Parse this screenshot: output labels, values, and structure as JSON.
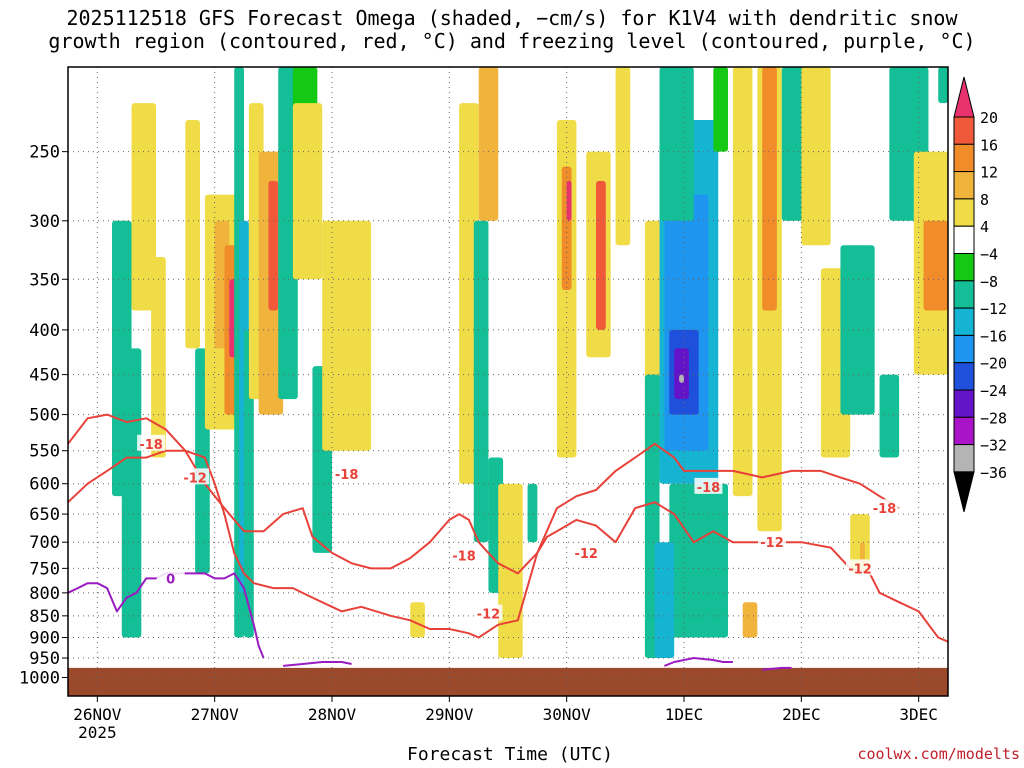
{
  "header": {
    "title_line1": "2025112518 GFS Forecast Omega (shaded, −cm/s) for K1V4 with dendritic snow",
    "title_line2": "growth region (contoured, red, °C) and freezing level (contoured, purple, °C)"
  },
  "footer": {
    "xlabel": "Forecast Time (UTC)",
    "credit": "coolwx.com/modelts"
  },
  "colors": {
    "temp_contour": "#e8413a",
    "freezing_contour": "#9a1bc0",
    "ground": "#9a4a2a",
    "credit": "#c0202b"
  },
  "chart_data": {
    "type": "heatmap",
    "title": "2025112518 GFS Forecast Omega (shaded, −cm/s) for K1V4 with dendritic snow growth region (contoured, red, °C) and freezing level (contoured, purple, °C)",
    "xlabel": "Forecast Time (UTC)",
    "ylabel": "",
    "x_ticks": [
      "26NOV",
      "27NOV",
      "28NOV",
      "29NOV",
      "30NOV",
      "1DEC",
      "2DEC",
      "3DEC"
    ],
    "x_tick_hours": [
      6,
      30,
      54,
      78,
      102,
      126,
      150,
      174
    ],
    "x_year_label": "2025",
    "x_range_hours": [
      0,
      180
    ],
    "y_ticks": [
      250,
      300,
      350,
      400,
      450,
      500,
      550,
      600,
      650,
      700,
      750,
      800,
      850,
      900,
      950,
      1000
    ],
    "y_range_hpa": [
      200,
      1050
    ],
    "y_scale": "log-pressure (inverted)",
    "grid": true,
    "legend_position": "right colorbar",
    "colorbar": {
      "labels": [
        "20",
        "16",
        "12",
        "8",
        "4",
        "−4",
        "−8",
        "−12",
        "−16",
        "−20",
        "−24",
        "−28",
        "−32",
        "−36"
      ],
      "colors": [
        "#e8326e",
        "#f05a3a",
        "#f08c2a",
        "#f0b43c",
        "#f0dc46",
        "#ffffff",
        "#14c814",
        "#14be96",
        "#14b4d2",
        "#1e96f0",
        "#1e50dc",
        "#6414c8",
        "#aa14c8",
        "#b4b4b4",
        "#000000"
      ]
    },
    "omega_features": [
      {
        "t0": 9,
        "t1": 13,
        "p0": 300,
        "p1": 620,
        "v": -8
      },
      {
        "t0": 11,
        "t1": 15,
        "p0": 420,
        "p1": 900,
        "v": -8
      },
      {
        "t0": 13,
        "t1": 18,
        "p0": 220,
        "p1": 380,
        "v": 5
      },
      {
        "t0": 17,
        "t1": 20,
        "p0": 330,
        "p1": 560,
        "v": 5
      },
      {
        "t0": 24,
        "t1": 27,
        "p0": 230,
        "p1": 420,
        "v": 5
      },
      {
        "t0": 26,
        "t1": 29,
        "p0": 420,
        "p1": 760,
        "v": -8
      },
      {
        "t0": 28,
        "t1": 35,
        "p0": 280,
        "p1": 520,
        "v": 5
      },
      {
        "t0": 30,
        "t1": 33,
        "p0": 300,
        "p1": 420,
        "v": 9
      },
      {
        "t0": 32,
        "t1": 35,
        "p0": 320,
        "p1": 500,
        "v": 14
      },
      {
        "t0": 33,
        "t1": 34.5,
        "p0": 350,
        "p1": 430,
        "v": 20
      },
      {
        "t0": 34,
        "t1": 36,
        "p0": 200,
        "p1": 900,
        "v": -9
      },
      {
        "t0": 35,
        "t1": 37,
        "p0": 300,
        "p1": 800,
        "v": -14
      },
      {
        "t0": 36,
        "t1": 38,
        "p0": 400,
        "p1": 900,
        "v": -9
      },
      {
        "t0": 37,
        "t1": 40,
        "p0": 220,
        "p1": 480,
        "v": 5
      },
      {
        "t0": 39,
        "t1": 44,
        "p0": 250,
        "p1": 500,
        "v": 9
      },
      {
        "t0": 41,
        "t1": 43,
        "p0": 270,
        "p1": 380,
        "v": 16
      },
      {
        "t0": 43,
        "t1": 47,
        "p0": 200,
        "p1": 480,
        "v": -8
      },
      {
        "t0": 46,
        "t1": 51,
        "p0": 200,
        "p1": 300,
        "v": -6
      },
      {
        "t0": 46,
        "t1": 52,
        "p0": 220,
        "p1": 350,
        "v": 5
      },
      {
        "t0": 50,
        "t1": 54,
        "p0": 440,
        "p1": 720,
        "v": -8
      },
      {
        "t0": 55,
        "t1": 60,
        "p0": 340,
        "p1": 500,
        "v": 9
      },
      {
        "t0": 57,
        "t1": 60,
        "p0": 370,
        "p1": 440,
        "v": 15
      },
      {
        "t0": 52,
        "t1": 62,
        "p0": 300,
        "p1": 550,
        "v": 5
      },
      {
        "t0": 50,
        "t1": 53,
        "p0": 600,
        "p1": 700,
        "v": -8
      },
      {
        "t0": 70,
        "t1": 73,
        "p0": 820,
        "p1": 900,
        "v": 5
      },
      {
        "t0": 80,
        "t1": 84,
        "p0": 220,
        "p1": 600,
        "v": 5
      },
      {
        "t0": 84,
        "t1": 88,
        "p0": 200,
        "p1": 300,
        "v": 9
      },
      {
        "t0": 83,
        "t1": 86,
        "p0": 300,
        "p1": 700,
        "v": -8
      },
      {
        "t0": 86,
        "t1": 89,
        "p0": 560,
        "p1": 800,
        "v": -8
      },
      {
        "t0": 88,
        "t1": 93,
        "p0": 600,
        "p1": 950,
        "v": 5
      },
      {
        "t0": 94,
        "t1": 96,
        "p0": 600,
        "p1": 700,
        "v": -8
      },
      {
        "t0": 100,
        "t1": 104,
        "p0": 230,
        "p1": 560,
        "v": 5
      },
      {
        "t0": 101,
        "t1": 103,
        "p0": 260,
        "p1": 360,
        "v": 12
      },
      {
        "t0": 102,
        "t1": 103,
        "p0": 270,
        "p1": 300,
        "v": 20
      },
      {
        "t0": 106,
        "t1": 111,
        "p0": 250,
        "p1": 430,
        "v": 5
      },
      {
        "t0": 108,
        "t1": 110,
        "p0": 270,
        "p1": 400,
        "v": 16
      },
      {
        "t0": 112,
        "t1": 115,
        "p0": 200,
        "p1": 320,
        "v": 5
      },
      {
        "t0": 118,
        "t1": 122,
        "p0": 300,
        "p1": 560,
        "v": 5
      },
      {
        "t0": 118,
        "t1": 121,
        "p0": 450,
        "p1": 950,
        "v": -8
      },
      {
        "t0": 121,
        "t1": 133,
        "p0": 230,
        "p1": 600,
        "v": -12
      },
      {
        "t0": 122,
        "t1": 131,
        "p0": 280,
        "p1": 550,
        "v": -17
      },
      {
        "t0": 123,
        "t1": 129,
        "p0": 400,
        "p1": 500,
        "v": -22
      },
      {
        "t0": 124,
        "t1": 127,
        "p0": 420,
        "p1": 480,
        "v": -27
      },
      {
        "t0": 125,
        "t1": 126,
        "p0": 450,
        "p1": 460,
        "v": -33
      },
      {
        "t0": 121,
        "t1": 128,
        "p0": 200,
        "p1": 300,
        "v": -8
      },
      {
        "t0": 123,
        "t1": 135,
        "p0": 600,
        "p1": 900,
        "v": -8
      },
      {
        "t0": 120,
        "t1": 124,
        "p0": 700,
        "p1": 950,
        "v": -12
      },
      {
        "t0": 132,
        "t1": 135,
        "p0": 200,
        "p1": 250,
        "v": -6
      },
      {
        "t0": 136,
        "t1": 140,
        "p0": 200,
        "p1": 620,
        "v": 5
      },
      {
        "t0": 138,
        "t1": 141,
        "p0": 820,
        "p1": 900,
        "v": 9
      },
      {
        "t0": 141,
        "t1": 146,
        "p0": 200,
        "p1": 680,
        "v": 5
      },
      {
        "t0": 142,
        "t1": 145,
        "p0": 200,
        "p1": 380,
        "v": 12
      },
      {
        "t0": 146,
        "t1": 155,
        "p0": 200,
        "p1": 300,
        "v": -8
      },
      {
        "t0": 150,
        "t1": 156,
        "p0": 200,
        "p1": 320,
        "v": 5
      },
      {
        "t0": 154,
        "t1": 160,
        "p0": 340,
        "p1": 560,
        "v": 5
      },
      {
        "t0": 158,
        "t1": 165,
        "p0": 320,
        "p1": 500,
        "v": -8
      },
      {
        "t0": 160,
        "t1": 164,
        "p0": 650,
        "p1": 760,
        "v": 5
      },
      {
        "t0": 162,
        "t1": 163,
        "p0": 700,
        "p1": 740,
        "v": 9
      },
      {
        "t0": 166,
        "t1": 170,
        "p0": 450,
        "p1": 560,
        "v": -8
      },
      {
        "t0": 168,
        "t1": 176,
        "p0": 200,
        "p1": 300,
        "v": -8
      },
      {
        "t0": 173,
        "t1": 180,
        "p0": 250,
        "p1": 450,
        "v": 5
      },
      {
        "t0": 175,
        "t1": 180,
        "p0": 300,
        "p1": 380,
        "v": 12
      },
      {
        "t0": 178,
        "t1": 180,
        "p0": 200,
        "p1": 220,
        "v": -8
      }
    ],
    "dgz_contours": {
      "level_minus12": {
        "t": [
          0,
          4,
          8,
          12,
          16,
          20,
          24,
          28,
          30,
          32,
          34,
          36,
          38,
          42,
          46,
          50,
          54,
          56,
          60,
          66,
          70,
          74,
          78,
          82,
          84,
          88,
          92,
          96,
          98,
          100,
          104,
          108,
          112,
          116,
          120,
          124,
          128,
          132,
          136,
          140,
          144,
          150,
          156,
          160,
          164,
          166,
          170,
          174,
          178,
          180
        ],
        "p": [
          630,
          600,
          580,
          560,
          560,
          550,
          550,
          560,
          600,
          650,
          720,
          760,
          780,
          790,
          790,
          810,
          830,
          840,
          830,
          850,
          860,
          880,
          880,
          890,
          900,
          870,
          860,
          720,
          690,
          680,
          660,
          670,
          700,
          640,
          630,
          650,
          700,
          680,
          700,
          700,
          700,
          700,
          710,
          750,
          760,
          800,
          820,
          840,
          900,
          910
        ]
      },
      "level_minus18": {
        "t": [
          0,
          4,
          8,
          12,
          16,
          20,
          24,
          28,
          32,
          36,
          40,
          44,
          48,
          50,
          54,
          58,
          62,
          66,
          70,
          74,
          78,
          80,
          82,
          84,
          86,
          88,
          92,
          96,
          100,
          104,
          108,
          112,
          116,
          120,
          124,
          126,
          130,
          136,
          142,
          148,
          154,
          158,
          162,
          166,
          170
        ],
        "p": [
          540,
          505,
          500,
          510,
          505,
          520,
          550,
          600,
          640,
          680,
          680,
          650,
          640,
          690,
          720,
          740,
          750,
          750,
          730,
          700,
          660,
          650,
          660,
          700,
          720,
          740,
          760,
          720,
          640,
          620,
          610,
          580,
          560,
          540,
          560,
          580,
          580,
          580,
          590,
          580,
          580,
          590,
          600,
          620,
          640
        ]
      },
      "labels": [
        {
          "text": "-18",
          "t": 17,
          "p": 540
        },
        {
          "text": "-12",
          "t": 26,
          "p": 590
        },
        {
          "text": "-18",
          "t": 57,
          "p": 585
        },
        {
          "text": "-18",
          "t": 81,
          "p": 725
        },
        {
          "text": "-12",
          "t": 86,
          "p": 845
        },
        {
          "text": "-12",
          "t": 106,
          "p": 720
        },
        {
          "text": "-18",
          "t": 131,
          "p": 605
        },
        {
          "text": "-12",
          "t": 144,
          "p": 700
        },
        {
          "text": "-12",
          "t": 162,
          "p": 750
        },
        {
          "text": "-18",
          "t": 167,
          "p": 640
        }
      ]
    },
    "freezing_contour": {
      "segments": [
        {
          "t": [
            0,
            2,
            4,
            6,
            8,
            10,
            12,
            14,
            16,
            18,
            20,
            22,
            24,
            26,
            28,
            30,
            32,
            34,
            36,
            37,
            38,
            39,
            40
          ],
          "p": [
            800,
            790,
            780,
            780,
            790,
            840,
            810,
            800,
            770,
            770,
            760,
            760,
            760,
            760,
            760,
            770,
            770,
            760,
            790,
            830,
            870,
            920,
            950
          ]
        },
        {
          "t": [
            44,
            48,
            52,
            56,
            58
          ],
          "p": [
            970,
            965,
            960,
            960,
            965
          ]
        },
        {
          "t": [
            122,
            124,
            128,
            132,
            134,
            136
          ],
          "p": [
            970,
            960,
            950,
            955,
            960,
            960
          ]
        },
        {
          "t": [
            142,
            146,
            148
          ],
          "p": [
            980,
            975,
            975
          ]
        }
      ],
      "labels": [
        {
          "text": "0",
          "t": 21,
          "p": 770
        }
      ]
    },
    "ground_pressure_hpa": 975
  }
}
